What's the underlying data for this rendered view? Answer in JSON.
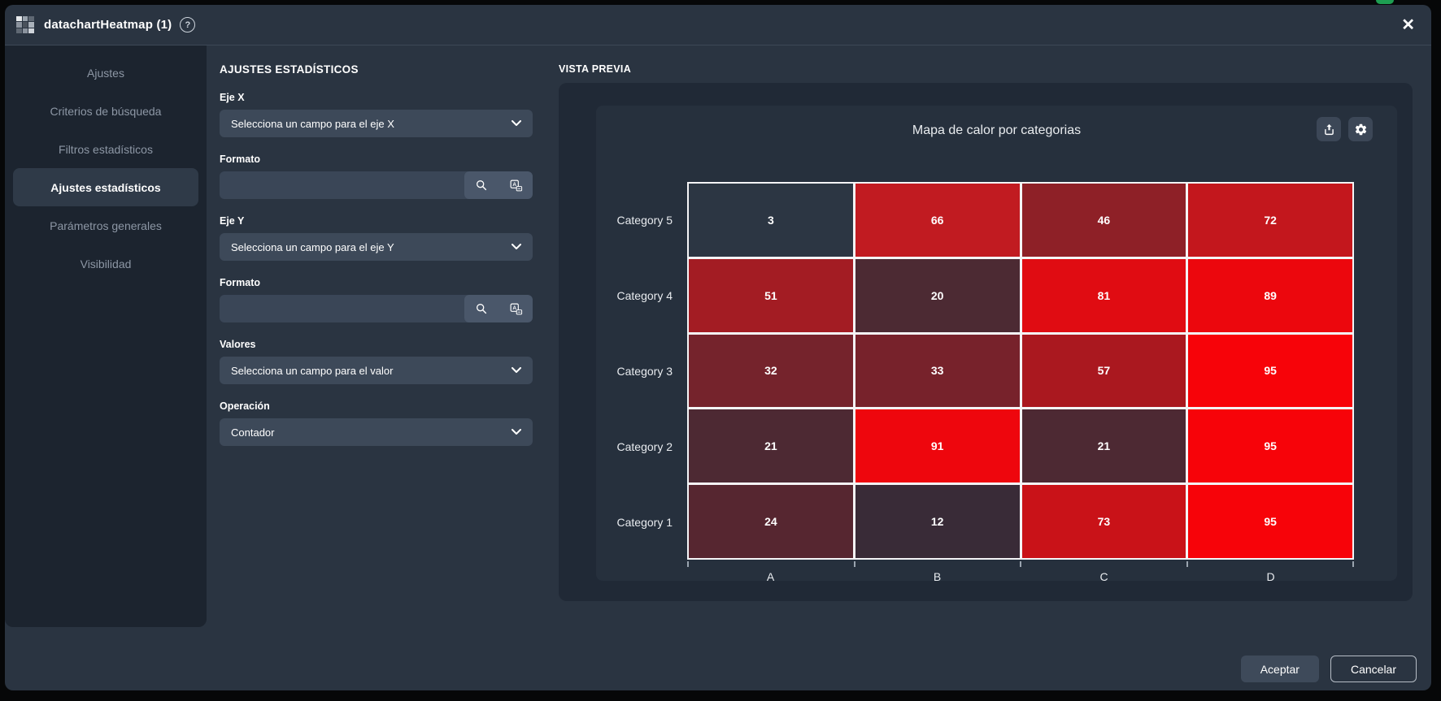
{
  "window": {
    "title": "datachartHeatmap (1)",
    "close_glyph": "✕",
    "help_glyph": "?"
  },
  "sidebar": {
    "items": [
      {
        "label": "Ajustes",
        "active": false
      },
      {
        "label": "Criterios de búsqueda",
        "active": false
      },
      {
        "label": "Filtros estadísticos",
        "active": false
      },
      {
        "label": "Ajustes estadísticos",
        "active": true
      },
      {
        "label": "Parámetros generales",
        "active": false
      },
      {
        "label": "Visibilidad",
        "active": false
      }
    ]
  },
  "form": {
    "section_title": "AJUSTES ESTADÍSTICOS",
    "eje_x": {
      "label": "Eje X",
      "value": "Selecciona un campo para el eje X"
    },
    "formato_x": {
      "label": "Formato",
      "value": "",
      "placeholder": ""
    },
    "eje_y": {
      "label": "Eje Y",
      "value": "Selecciona un campo para el eje Y"
    },
    "formato_y": {
      "label": "Formato",
      "value": "",
      "placeholder": ""
    },
    "valores": {
      "label": "Valores",
      "value": "Selecciona un campo para el valor"
    },
    "operacion": {
      "label": "Operación",
      "value": "Contador"
    }
  },
  "preview": {
    "section_title": "VISTA PREVIA",
    "toolbar_icons": [
      "export-icon",
      "gear-icon"
    ]
  },
  "chart_data": {
    "type": "heatmap",
    "title": "Mapa de calor por categorias",
    "x_categories": [
      "A",
      "B",
      "C",
      "D"
    ],
    "rows": [
      {
        "category": "Category 5",
        "values": [
          3,
          66,
          46,
          72
        ],
        "colors": [
          "#2c3643",
          "#c11b21",
          "#8e2027",
          "#c3171d"
        ]
      },
      {
        "category": "Category 4",
        "values": [
          51,
          20,
          81,
          89
        ],
        "colors": [
          "#a31c23",
          "#4c2a33",
          "#e00c12",
          "#ec070d"
        ]
      },
      {
        "category": "Category 3",
        "values": [
          32,
          33,
          57,
          95
        ],
        "colors": [
          "#75232c",
          "#77222b",
          "#aa181f",
          "#f70309"
        ]
      },
      {
        "category": "Category 2",
        "values": [
          21,
          91,
          21,
          95
        ],
        "colors": [
          "#4d2933",
          "#ee060d",
          "#4d2933",
          "#f70309"
        ]
      },
      {
        "category": "Category 1",
        "values": [
          24,
          12,
          73,
          95
        ],
        "colors": [
          "#562630",
          "#392b37",
          "#c91218",
          "#f70309"
        ]
      }
    ],
    "value_range": [
      0,
      100
    ],
    "colormap": {
      "low": "#2c3643",
      "high": "#ff0005"
    },
    "cell_border_color": "#f4f4f6",
    "legend": "none",
    "grid": "white-borders"
  },
  "footer": {
    "accept_label": "Aceptar",
    "cancel_label": "Cancelar"
  },
  "colors": {
    "modal_bg": "#2a3441",
    "sidebar_bg": "#1c242f",
    "panel_bg": "#202936",
    "card_bg": "#26303d",
    "field_bg": "#3d4959",
    "active_item_bg": "#2f3a48",
    "accent_green_peek": "#1e9e52"
  }
}
